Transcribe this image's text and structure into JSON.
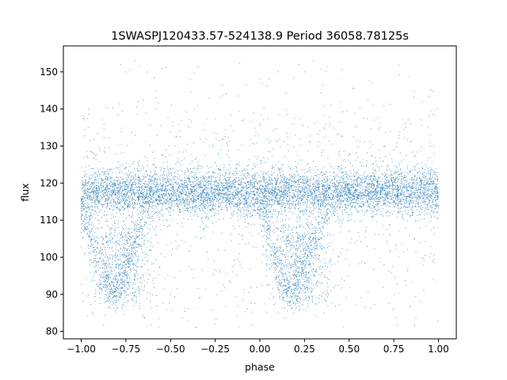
{
  "chart_data": {
    "type": "scatter",
    "title": "1SWASPJ120433.57-524138.9 Period 36058.78125s",
    "xlabel": "phase",
    "ylabel": "flux",
    "xlim": [
      -1.1,
      1.1
    ],
    "ylim": [
      78,
      157
    ],
    "x_ticks": [
      -1.0,
      -0.75,
      -0.5,
      -0.25,
      0.0,
      0.25,
      0.5,
      0.75,
      1.0
    ],
    "x_tick_labels": [
      "−1.00",
      "−0.75",
      "−0.50",
      "−0.25",
      "0.00",
      "0.25",
      "0.50",
      "0.75",
      "1.00"
    ],
    "y_ticks": [
      80,
      90,
      100,
      110,
      120,
      130,
      140,
      150
    ],
    "y_tick_labels": [
      "80",
      "90",
      "100",
      "110",
      "120",
      "130",
      "140",
      "150"
    ],
    "grid": false,
    "legend": "none",
    "point_color": "#1f77b4",
    "series": [
      {
        "distribution": "phase-folded light curve, pattern repeats with period 1.0 in phase",
        "baseline_band": {
          "x_range": [
            -1.0,
            1.0
          ],
          "flux_center": 117.5,
          "flux_core_range": [
            112,
            123
          ],
          "spread_sd": 3
        },
        "eclipse_clusters": [
          {
            "phase_center": -0.78,
            "flux_range": [
              86,
              108
            ]
          },
          {
            "phase_center": 0.22,
            "flux_range": [
              86,
              108
            ]
          }
        ],
        "eclipse_arms": [
          {
            "from": [
              -1.0,
              114
            ],
            "to": [
              -0.83,
              88
            ]
          },
          {
            "from": [
              -0.83,
              88
            ],
            "to": [
              -0.62,
              114
            ]
          },
          {
            "from": [
              0.0,
              114
            ],
            "to": [
              0.17,
              88
            ]
          },
          {
            "from": [
              0.17,
              88
            ],
            "to": [
              0.38,
              114
            ]
          }
        ],
        "sparse_points": [
          {
            "x": -0.78,
            "y": 152
          },
          {
            "x": -0.75,
            "y": 150
          },
          {
            "x": -0.7,
            "y": 153
          },
          {
            "x": 0.22,
            "y": 152
          },
          {
            "x": 0.25,
            "y": 150
          },
          {
            "x": 0.3,
            "y": 153
          },
          {
            "x": -0.72,
            "y": 131
          },
          {
            "x": -0.3,
            "y": 132
          },
          {
            "x": 0.28,
            "y": 131
          },
          {
            "x": 0.7,
            "y": 130
          },
          {
            "x": 0.95,
            "y": 131
          },
          {
            "x": 0.4,
            "y": 141
          }
        ],
        "approx_point_count": 9000
      }
    ]
  }
}
